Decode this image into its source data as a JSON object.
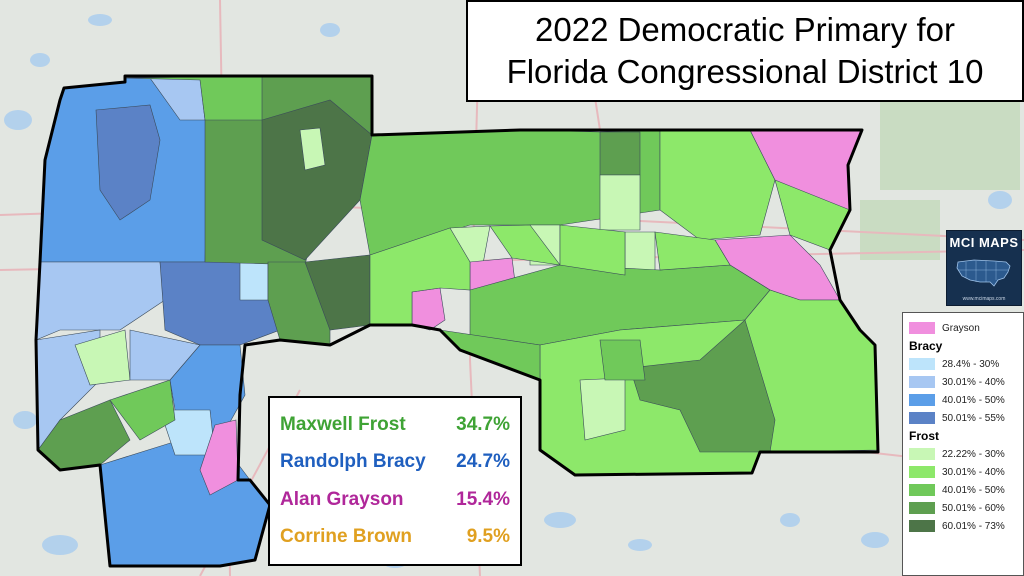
{
  "title": {
    "line1": "2022 Democratic Primary for",
    "line2": "Florida Congressional District 10"
  },
  "results": [
    {
      "candidate": "Maxwell Frost",
      "percent": "34.7%",
      "color": "#3fa335"
    },
    {
      "candidate": "Randolph Bracy",
      "percent": "24.7%",
      "color": "#1f5fbf"
    },
    {
      "candidate": "Alan Grayson",
      "percent": "15.4%",
      "color": "#b0279a"
    },
    {
      "candidate": "Corrine Brown",
      "percent": "9.5%",
      "color": "#e0a020"
    }
  ],
  "logo": {
    "title": "MCI MAPS",
    "site": "www.mcimaps.com"
  },
  "legend": {
    "grayson": {
      "label": "Grayson",
      "color": "#f08fde"
    },
    "bracy": {
      "heading": "Bracy",
      "items": [
        {
          "label": "28.4% - 30%",
          "color": "#bde4fb"
        },
        {
          "label": "30.01% - 40%",
          "color": "#a7c7f2"
        },
        {
          "label": "40.01% - 50%",
          "color": "#5b9ee8"
        },
        {
          "label": "50.01% - 55%",
          "color": "#5b82c6"
        }
      ]
    },
    "frost": {
      "heading": "Frost",
      "items": [
        {
          "label": "22.22% - 30%",
          "color": "#c8f7b5"
        },
        {
          "label": "30.01% - 40%",
          "color": "#8de86a"
        },
        {
          "label": "40.01% - 50%",
          "color": "#70c95a"
        },
        {
          "label": "50.01% - 60%",
          "color": "#5e9f50"
        },
        {
          "label": "60.01% - 73%",
          "color": "#4d7548"
        }
      ]
    }
  }
}
